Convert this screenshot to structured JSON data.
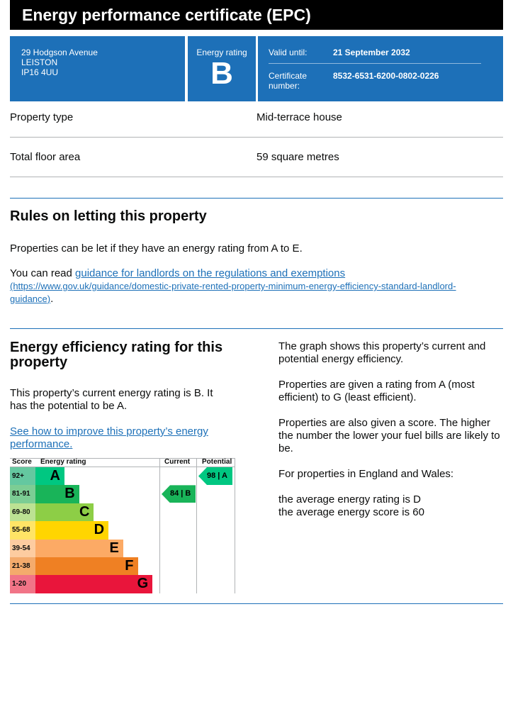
{
  "title": "Energy performance certificate (EPC)",
  "summary": {
    "address": [
      "29 Hodgson Avenue",
      "LEISTON",
      "IP16 4UU"
    ],
    "energy_rating_label": "Energy rating",
    "energy_rating": "B",
    "valid_until_label": "Valid until:",
    "valid_until": "21 September 2032",
    "certificate_label": "Certificate number:",
    "certificate_number": "8532-6531-6200-0802-0226"
  },
  "details": [
    {
      "label": "Property type",
      "value": "Mid-terrace house"
    },
    {
      "label": "Total floor area",
      "value": "59 square metres"
    }
  ],
  "letting": {
    "heading": "Rules on letting this property",
    "p1": "Properties can be let if they have an energy rating from A to E.",
    "p2_prefix": "You can read ",
    "link": "guidance for landlords on the regulations and exemptions",
    "url_text": "(https://www.gov.uk/guidance/domestic-private-rented-property-minimum-energy-efficiency-standard-landlord-guidance)",
    "p2_suffix": "."
  },
  "efficiency": {
    "heading": "Energy efficiency rating for this property",
    "p1": "This property’s current energy rating is B. It has the potential to be A.",
    "link": "See how to improve this property’s energy performance.",
    "right": [
      "The graph shows this property’s current and potential energy efficiency.",
      "Properties are given a rating from A (most efficient) to G (least efficient).",
      "Properties are also given a score. The higher the number the lower your fuel bills are likely to be.",
      "For properties in England and Wales:"
    ],
    "avg_rating": "the average energy rating is D",
    "avg_score": "the average energy score is 60"
  },
  "chart_data": {
    "type": "table",
    "headers": {
      "score": "Score",
      "rating": "Energy rating",
      "current": "Current",
      "potential": "Potential"
    },
    "bands": [
      {
        "band": "A",
        "range": "92+",
        "color": "#00c781",
        "light": "#64c8a0"
      },
      {
        "band": "B",
        "range": "81-91",
        "color": "#19b459",
        "light": "#7ccd94"
      },
      {
        "band": "C",
        "range": "69-80",
        "color": "#8dce46",
        "light": "#bce293"
      },
      {
        "band": "D",
        "range": "55-68",
        "color": "#ffd500",
        "light": "#ffe466"
      },
      {
        "band": "E",
        "range": "39-54",
        "color": "#fcaa65",
        "light": "#fdcca0"
      },
      {
        "band": "F",
        "range": "21-38",
        "color": "#ef8023",
        "light": "#f4ab6c"
      },
      {
        "band": "G",
        "range": "1-20",
        "color": "#e9153b",
        "light": "#f17487"
      }
    ],
    "current": {
      "score": 84,
      "band": "B",
      "text": "84 | B"
    },
    "potential": {
      "score": 98,
      "band": "A",
      "text": "98 | A"
    }
  }
}
